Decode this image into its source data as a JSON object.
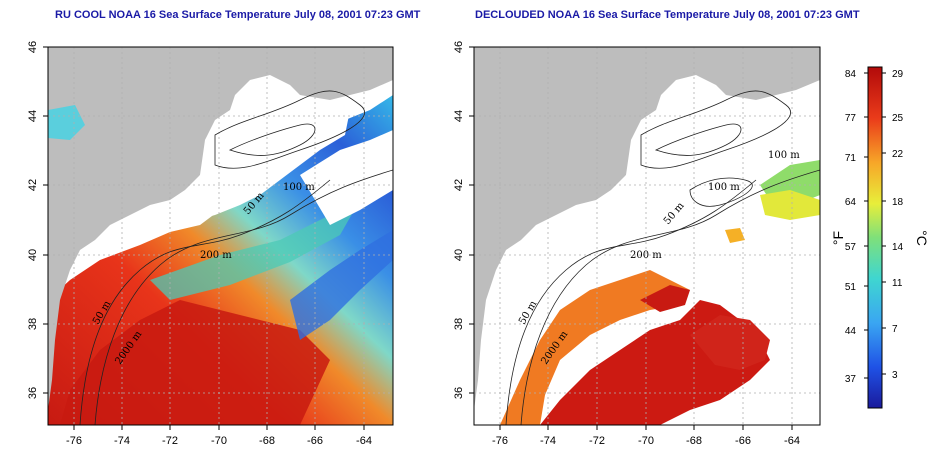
{
  "panels": [
    {
      "title": "RU COOL NOAA 16 Sea Surface Temperature July 08, 2001 07:23 GMT",
      "contour_labels": [
        "100 m",
        "50 m",
        "200 m",
        "50 m",
        "2000 m"
      ]
    },
    {
      "title": "DECLOUDED NOAA 16 Sea Surface Temperature July 08, 2001 07:23 GMT",
      "contour_labels": [
        "100 m",
        "100 m",
        "50 m",
        "200 m",
        "50 m",
        "2000 m"
      ]
    }
  ],
  "axes": {
    "x_ticks": [
      "-76",
      "-74",
      "-72",
      "-70",
      "-68",
      "-66",
      "-64"
    ],
    "y_ticks": [
      "36",
      "38",
      "40",
      "42",
      "44",
      "46"
    ]
  },
  "colorbar": {
    "fahrenheit_ticks": [
      "84",
      "77",
      "71",
      "64",
      "57",
      "51",
      "44",
      "37"
    ],
    "celsius_ticks": [
      "29",
      "25",
      "22",
      "18",
      "14",
      "11",
      "7",
      "3"
    ],
    "left_unit": "°F",
    "right_unit": "°C"
  },
  "colors": {
    "land": "#bdbdbd",
    "title": "#1a1aa6",
    "grid": "#b0b0b0"
  }
}
